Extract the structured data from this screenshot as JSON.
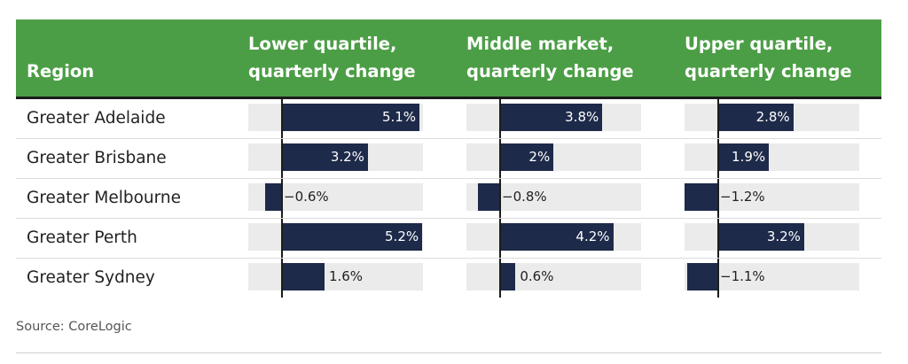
{
  "header": {
    "region": "Region",
    "columns": [
      {
        "line1": "Lower quartile,",
        "line2": "quarterly change"
      },
      {
        "line1": "Middle market,",
        "line2": "quarterly change"
      },
      {
        "line1": "Upper quartile,",
        "line2": "quarterly change"
      }
    ]
  },
  "chart_data": {
    "type": "bar",
    "categories": [
      "Greater Adelaide",
      "Greater Brisbane",
      "Greater Melbourne",
      "Greater Perth",
      "Greater Sydney"
    ],
    "series": [
      {
        "name": "Lower quartile, quarterly change",
        "values": [
          5.1,
          3.2,
          -0.6,
          5.2,
          1.6
        ],
        "labels": [
          "5.1%",
          "3.2%",
          "−0.6%",
          "5.2%",
          "1.6%"
        ]
      },
      {
        "name": "Middle market, quarterly change",
        "values": [
          3.8,
          2.0,
          -0.8,
          4.2,
          0.6
        ],
        "labels": [
          "3.8%",
          "2%",
          "−0.8%",
          "4.2%",
          "0.6%"
        ]
      },
      {
        "name": "Upper quartile, quarterly change",
        "values": [
          2.8,
          1.9,
          -1.2,
          3.2,
          -1.1
        ],
        "labels": [
          "2.8%",
          "1.9%",
          "−1.2%",
          "3.2%",
          "−1.1%"
        ]
      }
    ],
    "xlim": [
      -1.2,
      5.2
    ],
    "colors": {
      "header": "#4c9e46",
      "bar": "#1e2a4a",
      "track": "#ebebeb"
    }
  },
  "source": "Source: CoreLogic"
}
